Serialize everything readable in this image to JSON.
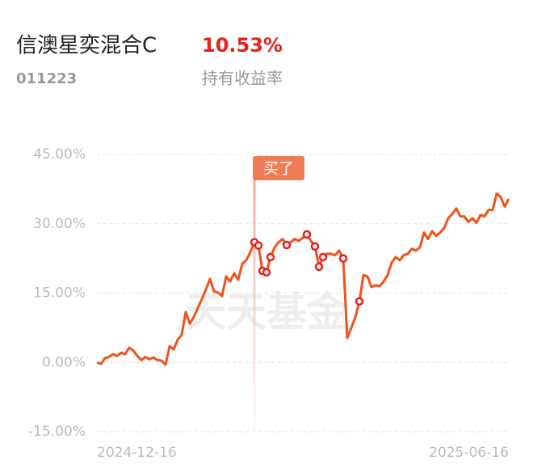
{
  "header": {
    "name": "信澳星奕混合C",
    "return": "10.53%",
    "code": "011223",
    "return_label": "持有收益率"
  },
  "chart_data": {
    "type": "line",
    "watermark": "天天基金",
    "annotation": {
      "label": "买了",
      "index": 39
    },
    "markers": [
      39,
      40,
      41,
      42,
      43,
      47,
      52,
      54,
      55,
      56,
      61,
      65
    ],
    "categories": [
      "2024-12-16",
      null,
      null,
      null,
      null,
      null,
      null,
      null,
      null,
      null,
      null,
      null,
      null,
      null,
      null,
      null,
      null,
      null,
      null,
      null,
      null,
      null,
      null,
      null,
      null,
      null,
      null,
      null,
      null,
      null,
      null,
      null,
      null,
      null,
      null,
      null,
      null,
      null,
      null,
      null,
      null,
      null,
      null,
      null,
      null,
      null,
      null,
      null,
      null,
      null,
      null,
      null,
      null,
      null,
      null,
      null,
      null,
      null,
      null,
      null,
      null,
      null,
      null,
      null,
      null,
      null,
      null,
      null,
      null,
      null,
      null,
      null,
      null,
      null,
      null,
      null,
      null,
      null,
      null,
      null,
      null,
      null,
      null,
      null,
      null,
      null,
      null,
      null,
      null,
      null,
      null,
      null,
      null,
      null,
      null,
      null,
      null,
      null,
      null,
      null,
      null,
      null,
      "2025-06-16"
    ],
    "series": [
      {
        "name": "持有收益率",
        "color": "#f0521d",
        "values": [
          0,
          -0.3,
          0.9,
          1.2,
          1.8,
          1.4,
          2.1,
          1.8,
          3.2,
          2.6,
          1.4,
          0.5,
          1.2,
          0.7,
          1.1,
          0.5,
          0.4,
          -0.5,
          3.5,
          2.8,
          4.9,
          6.0,
          10.9,
          8.4,
          9.8,
          11.8,
          13.7,
          15.8,
          18.1,
          15.4,
          15.1,
          14.4,
          18.6,
          17.5,
          19.3,
          17.9,
          21.4,
          22.1,
          23.9,
          26.0,
          25.3,
          19.8,
          19.5,
          22.8,
          24.9,
          26.0,
          26.7,
          25.4,
          26.0,
          26.7,
          26.3,
          27.0,
          27.7,
          26.3,
          25.1,
          20.7,
          22.8,
          23.5,
          23.5,
          23.2,
          24.2,
          22.5,
          5.3,
          7.5,
          9.8,
          13.2,
          18.9,
          18.6,
          16.3,
          16.7,
          16.5,
          17.5,
          18.9,
          21.6,
          22.8,
          22.1,
          23.2,
          23.5,
          24.6,
          24.2,
          24.9,
          28.1,
          26.7,
          28.4,
          27.4,
          28.1,
          29.1,
          31.2,
          32.1,
          33.3,
          31.6,
          31.6,
          30.4,
          31.2,
          30.2,
          31.9,
          31.6,
          33.0,
          33.0,
          36.5,
          35.8,
          33.7,
          35.4
        ]
      }
    ],
    "ylim": [
      -15,
      45
    ],
    "yticks": [
      {
        "value": 45,
        "label": "45.00%"
      },
      {
        "value": 30,
        "label": "30.00%"
      },
      {
        "value": 15,
        "label": "15.00%"
      },
      {
        "value": 0,
        "label": "0.00%"
      },
      {
        "value": -15,
        "label": "-15.00%"
      }
    ],
    "grid": true
  }
}
